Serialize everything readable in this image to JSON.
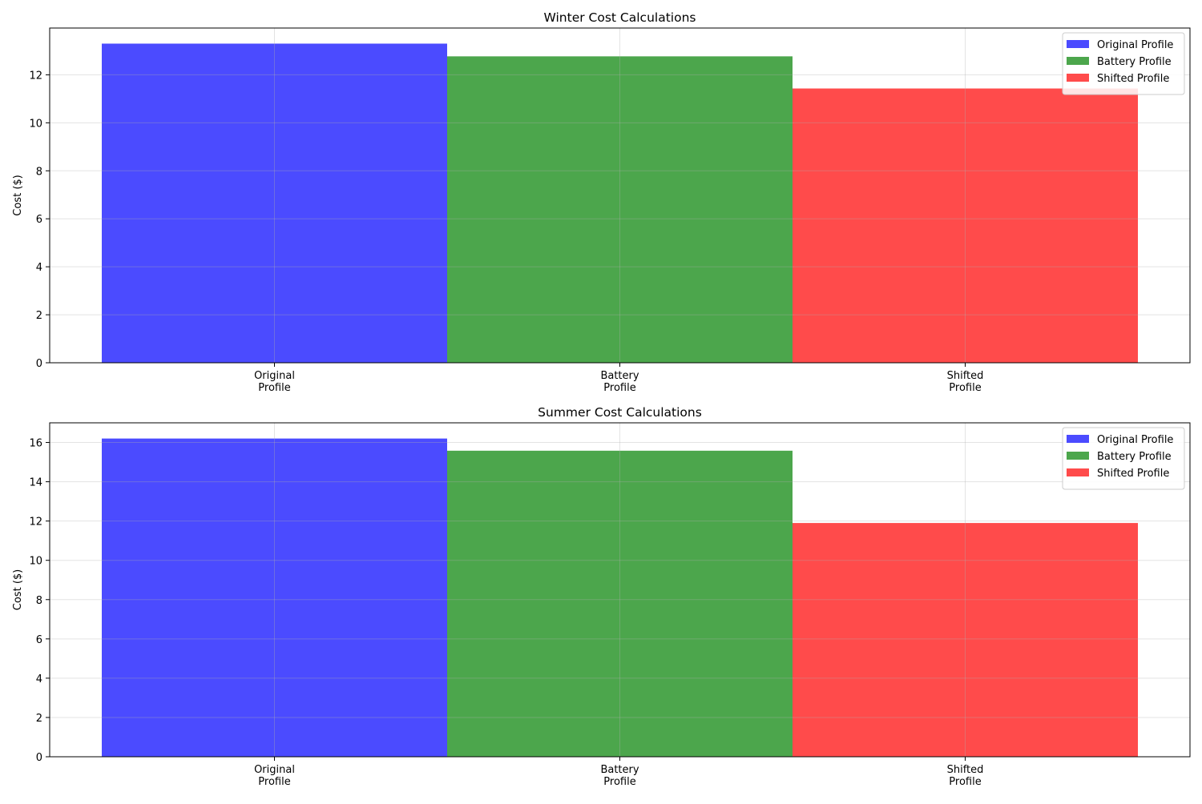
{
  "chart_data": [
    {
      "type": "bar",
      "title": "Winter Cost Calculations",
      "xlabel": "",
      "ylabel": "Cost ($)",
      "categories": [
        "Original\nProfile",
        "Battery\nProfile",
        "Shifted\nProfile"
      ],
      "values": [
        13.3,
        12.77,
        11.43
      ],
      "bar_colors": [
        "#4B4BFF",
        "#4CA64C",
        "#FF4B4B"
      ],
      "ylim": [
        0,
        13.95
      ],
      "yticks": [
        0,
        2,
        4,
        6,
        8,
        10,
        12
      ],
      "grid": true,
      "legend": {
        "position": "top-right",
        "entries": [
          {
            "label": "Original Profile",
            "color": "#4B4BFF"
          },
          {
            "label": "Battery Profile",
            "color": "#4CA64C"
          },
          {
            "label": "Shifted Profile",
            "color": "#FF4B4B"
          }
        ]
      }
    },
    {
      "type": "bar",
      "title": "Summer Cost Calculations",
      "xlabel": "",
      "ylabel": "Cost ($)",
      "categories": [
        "Original\nProfile",
        "Battery\nProfile",
        "Shifted\nProfile"
      ],
      "values": [
        16.2,
        15.58,
        11.9
      ],
      "bar_colors": [
        "#4B4BFF",
        "#4CA64C",
        "#FF4B4B"
      ],
      "ylim": [
        0,
        17.0
      ],
      "yticks": [
        0,
        2,
        4,
        6,
        8,
        10,
        12,
        14,
        16
      ],
      "grid": true,
      "legend": {
        "position": "top-right",
        "entries": [
          {
            "label": "Original Profile",
            "color": "#4B4BFF"
          },
          {
            "label": "Battery Profile",
            "color": "#4CA64C"
          },
          {
            "label": "Shifted Profile",
            "color": "#FF4B4B"
          }
        ]
      }
    }
  ]
}
